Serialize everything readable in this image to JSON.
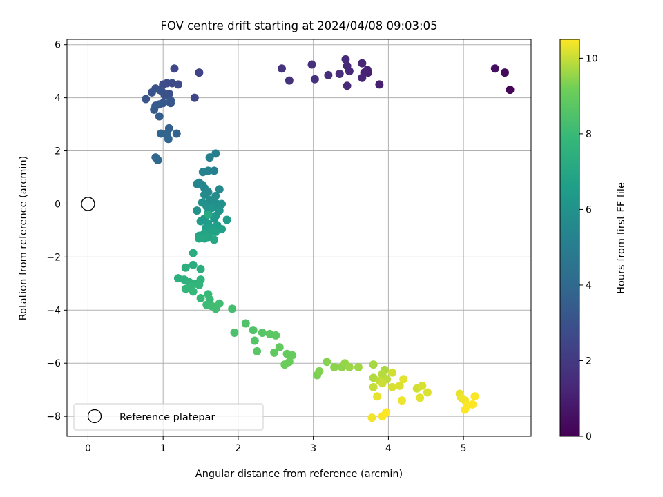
{
  "chart_data": {
    "type": "scatter",
    "title": "FOV centre drift starting at 2024/04/08 09:03:05",
    "xlabel": "Angular distance from reference (arcmin)",
    "ylabel": "Rotation from reference (arcmin)",
    "xlim": [
      -0.28,
      5.9
    ],
    "ylim": [
      -8.75,
      6.2
    ],
    "xticks": [
      0,
      1,
      2,
      3,
      4,
      5
    ],
    "yticks": [
      -8,
      -6,
      -4,
      -2,
      0,
      2,
      4,
      6
    ],
    "grid": true,
    "legend": {
      "placement": "lower-left",
      "label": "Reference platepar"
    },
    "reference_point": {
      "x": 0,
      "y": 0
    },
    "colorbar": {
      "label": "Hours from first FF file",
      "colormap": "viridis",
      "range": [
        0,
        10.5
      ],
      "ticks": [
        0,
        2,
        4,
        6,
        8,
        10
      ]
    },
    "points": [
      {
        "x": 5.62,
        "y": 4.3,
        "t": 0.15
      },
      {
        "x": 5.55,
        "y": 4.95,
        "t": 0.3
      },
      {
        "x": 5.42,
        "y": 5.1,
        "t": 0.45
      },
      {
        "x": 3.88,
        "y": 4.5,
        "t": 1.0
      },
      {
        "x": 3.73,
        "y": 4.95,
        "t": 1.05
      },
      {
        "x": 3.72,
        "y": 5.05,
        "t": 1.1
      },
      {
        "x": 3.68,
        "y": 4.95,
        "t": 1.15
      },
      {
        "x": 3.65,
        "y": 4.75,
        "t": 1.2
      },
      {
        "x": 3.65,
        "y": 5.3,
        "t": 1.25
      },
      {
        "x": 3.48,
        "y": 5.0,
        "t": 1.3
      },
      {
        "x": 3.45,
        "y": 5.2,
        "t": 1.35
      },
      {
        "x": 3.43,
        "y": 5.45,
        "t": 1.4
      },
      {
        "x": 3.45,
        "y": 4.45,
        "t": 1.45
      },
      {
        "x": 3.35,
        "y": 4.9,
        "t": 1.5
      },
      {
        "x": 3.2,
        "y": 4.85,
        "t": 1.55
      },
      {
        "x": 3.02,
        "y": 4.7,
        "t": 1.6
      },
      {
        "x": 2.98,
        "y": 5.25,
        "t": 1.65
      },
      {
        "x": 2.68,
        "y": 4.65,
        "t": 1.7
      },
      {
        "x": 2.58,
        "y": 5.1,
        "t": 1.75
      },
      {
        "x": 1.48,
        "y": 4.95,
        "t": 2.4
      },
      {
        "x": 1.42,
        "y": 4.0,
        "t": 2.5
      },
      {
        "x": 1.15,
        "y": 5.1,
        "t": 2.6
      },
      {
        "x": 1.2,
        "y": 4.5,
        "t": 2.65
      },
      {
        "x": 1.12,
        "y": 4.55,
        "t": 2.7
      },
      {
        "x": 1.05,
        "y": 4.55,
        "t": 2.75
      },
      {
        "x": 1.0,
        "y": 4.5,
        "t": 2.8
      },
      {
        "x": 0.95,
        "y": 4.3,
        "t": 2.85
      },
      {
        "x": 1.08,
        "y": 4.15,
        "t": 2.9
      },
      {
        "x": 1.02,
        "y": 4.1,
        "t": 2.95
      },
      {
        "x": 0.98,
        "y": 4.25,
        "t": 3.0
      },
      {
        "x": 0.9,
        "y": 4.35,
        "t": 3.05
      },
      {
        "x": 0.85,
        "y": 4.2,
        "t": 3.1
      },
      {
        "x": 0.77,
        "y": 3.95,
        "t": 3.15
      },
      {
        "x": 1.1,
        "y": 3.9,
        "t": 3.2
      },
      {
        "x": 1.1,
        "y": 3.8,
        "t": 3.25
      },
      {
        "x": 1.0,
        "y": 3.8,
        "t": 3.3
      },
      {
        "x": 0.95,
        "y": 3.75,
        "t": 3.35
      },
      {
        "x": 0.9,
        "y": 3.7,
        "t": 3.4
      },
      {
        "x": 0.88,
        "y": 3.55,
        "t": 3.45
      },
      {
        "x": 0.95,
        "y": 3.3,
        "t": 3.5
      },
      {
        "x": 1.08,
        "y": 2.85,
        "t": 3.6
      },
      {
        "x": 1.18,
        "y": 2.65,
        "t": 3.7
      },
      {
        "x": 1.05,
        "y": 2.65,
        "t": 3.75
      },
      {
        "x": 0.97,
        "y": 2.65,
        "t": 3.8
      },
      {
        "x": 1.07,
        "y": 2.45,
        "t": 3.85
      },
      {
        "x": 0.9,
        "y": 1.75,
        "t": 3.95
      },
      {
        "x": 0.93,
        "y": 1.65,
        "t": 4.0
      },
      {
        "x": 1.7,
        "y": 1.9,
        "t": 5.1
      },
      {
        "x": 1.62,
        "y": 1.75,
        "t": 5.15
      },
      {
        "x": 1.68,
        "y": 1.25,
        "t": 5.2
      },
      {
        "x": 1.6,
        "y": 1.25,
        "t": 5.25
      },
      {
        "x": 1.53,
        "y": 1.2,
        "t": 5.3
      },
      {
        "x": 1.48,
        "y": 0.8,
        "t": 5.35
      },
      {
        "x": 1.45,
        "y": 0.75,
        "t": 5.4
      },
      {
        "x": 1.55,
        "y": 0.6,
        "t": 5.45
      },
      {
        "x": 1.52,
        "y": 0.72,
        "t": 5.5
      },
      {
        "x": 1.75,
        "y": 0.55,
        "t": 5.55
      },
      {
        "x": 1.6,
        "y": 0.45,
        "t": 5.6
      },
      {
        "x": 1.55,
        "y": 0.35,
        "t": 5.65
      },
      {
        "x": 1.7,
        "y": 0.3,
        "t": 5.7
      },
      {
        "x": 1.62,
        "y": 0.15,
        "t": 5.75
      },
      {
        "x": 1.68,
        "y": 0.1,
        "t": 5.8
      },
      {
        "x": 1.72,
        "y": 0.0,
        "t": 5.85
      },
      {
        "x": 1.78,
        "y": 0.0,
        "t": 5.9
      },
      {
        "x": 1.52,
        "y": 0.05,
        "t": 5.95
      },
      {
        "x": 1.58,
        "y": -0.1,
        "t": 6.0
      },
      {
        "x": 1.45,
        "y": -0.25,
        "t": 6.05
      },
      {
        "x": 1.65,
        "y": -0.15,
        "t": 6.1
      },
      {
        "x": 1.75,
        "y": -0.25,
        "t": 6.15
      },
      {
        "x": 1.6,
        "y": -0.35,
        "t": 6.2
      },
      {
        "x": 1.7,
        "y": -0.45,
        "t": 6.25
      },
      {
        "x": 1.55,
        "y": -0.55,
        "t": 6.3
      },
      {
        "x": 1.68,
        "y": -0.55,
        "t": 6.35
      },
      {
        "x": 1.5,
        "y": -0.65,
        "t": 6.4
      },
      {
        "x": 1.85,
        "y": -0.6,
        "t": 6.45
      },
      {
        "x": 1.6,
        "y": -0.75,
        "t": 6.5
      },
      {
        "x": 1.72,
        "y": -0.8,
        "t": 6.55
      },
      {
        "x": 1.65,
        "y": -0.9,
        "t": 6.6
      },
      {
        "x": 1.57,
        "y": -0.9,
        "t": 6.65
      },
      {
        "x": 1.78,
        "y": -0.95,
        "t": 6.7
      },
      {
        "x": 1.7,
        "y": -1.05,
        "t": 6.75
      },
      {
        "x": 1.62,
        "y": -1.1,
        "t": 6.8
      },
      {
        "x": 1.55,
        "y": -1.1,
        "t": 6.85
      },
      {
        "x": 1.48,
        "y": -1.2,
        "t": 6.9
      },
      {
        "x": 1.6,
        "y": -1.25,
        "t": 6.95
      },
      {
        "x": 1.55,
        "y": -1.3,
        "t": 7.0
      },
      {
        "x": 1.68,
        "y": -1.35,
        "t": 7.05
      },
      {
        "x": 1.48,
        "y": -1.3,
        "t": 7.1
      },
      {
        "x": 1.6,
        "y": -0.4,
        "t": 7.15
      },
      {
        "x": 1.4,
        "y": -1.85,
        "t": 7.25
      },
      {
        "x": 1.4,
        "y": -2.3,
        "t": 7.3
      },
      {
        "x": 1.5,
        "y": -2.45,
        "t": 7.35
      },
      {
        "x": 1.3,
        "y": -2.4,
        "t": 7.4
      },
      {
        "x": 1.2,
        "y": -2.8,
        "t": 7.45
      },
      {
        "x": 1.28,
        "y": -2.85,
        "t": 7.5
      },
      {
        "x": 1.35,
        "y": -2.95,
        "t": 7.55
      },
      {
        "x": 1.42,
        "y": -3.0,
        "t": 7.6
      },
      {
        "x": 1.5,
        "y": -2.85,
        "t": 7.65
      },
      {
        "x": 1.48,
        "y": -3.05,
        "t": 7.7
      },
      {
        "x": 1.38,
        "y": -3.1,
        "t": 7.75
      },
      {
        "x": 1.3,
        "y": -3.2,
        "t": 7.8
      },
      {
        "x": 1.4,
        "y": -3.3,
        "t": 7.85
      },
      {
        "x": 1.5,
        "y": -3.55,
        "t": 7.9
      },
      {
        "x": 1.6,
        "y": -3.4,
        "t": 7.95
      },
      {
        "x": 1.62,
        "y": -3.6,
        "t": 8.0
      },
      {
        "x": 1.58,
        "y": -3.8,
        "t": 8.05
      },
      {
        "x": 1.65,
        "y": -3.85,
        "t": 8.1
      },
      {
        "x": 1.7,
        "y": -3.95,
        "t": 8.15
      },
      {
        "x": 1.75,
        "y": -3.75,
        "t": 8.2
      },
      {
        "x": 1.92,
        "y": -3.95,
        "t": 8.25
      },
      {
        "x": 1.95,
        "y": -4.85,
        "t": 8.4
      },
      {
        "x": 2.1,
        "y": -4.5,
        "t": 8.5
      },
      {
        "x": 2.2,
        "y": -4.75,
        "t": 8.55
      },
      {
        "x": 2.22,
        "y": -5.15,
        "t": 8.6
      },
      {
        "x": 2.32,
        "y": -4.85,
        "t": 8.65
      },
      {
        "x": 2.25,
        "y": -5.55,
        "t": 8.7
      },
      {
        "x": 2.42,
        "y": -4.9,
        "t": 8.75
      },
      {
        "x": 2.5,
        "y": -4.95,
        "t": 8.8
      },
      {
        "x": 2.48,
        "y": -5.6,
        "t": 8.85
      },
      {
        "x": 2.55,
        "y": -5.4,
        "t": 8.9
      },
      {
        "x": 2.65,
        "y": -5.65,
        "t": 8.95
      },
      {
        "x": 2.72,
        "y": -5.7,
        "t": 9.0
      },
      {
        "x": 2.68,
        "y": -5.95,
        "t": 9.05
      },
      {
        "x": 2.62,
        "y": -6.05,
        "t": 9.1
      },
      {
        "x": 3.05,
        "y": -6.45,
        "t": 9.3
      },
      {
        "x": 3.08,
        "y": -6.3,
        "t": 9.35
      },
      {
        "x": 3.18,
        "y": -5.95,
        "t": 9.4
      },
      {
        "x": 3.28,
        "y": -6.15,
        "t": 9.45
      },
      {
        "x": 3.38,
        "y": -6.15,
        "t": 9.5
      },
      {
        "x": 3.42,
        "y": -6.0,
        "t": 9.55
      },
      {
        "x": 3.48,
        "y": -6.15,
        "t": 9.6
      },
      {
        "x": 3.6,
        "y": -6.15,
        "t": 9.65
      },
      {
        "x": 3.8,
        "y": -6.05,
        "t": 9.7
      },
      {
        "x": 3.95,
        "y": -6.25,
        "t": 9.75
      },
      {
        "x": 3.8,
        "y": -6.55,
        "t": 9.8
      },
      {
        "x": 3.92,
        "y": -6.4,
        "t": 9.85
      },
      {
        "x": 3.98,
        "y": -6.6,
        "t": 9.9
      },
      {
        "x": 3.88,
        "y": -6.65,
        "t": 9.95
      },
      {
        "x": 3.8,
        "y": -6.9,
        "t": 10.0
      },
      {
        "x": 3.92,
        "y": -6.75,
        "t": 10.05
      },
      {
        "x": 4.05,
        "y": -6.35,
        "t": 10.1
      },
      {
        "x": 4.05,
        "y": -6.9,
        "t": 10.15
      },
      {
        "x": 4.15,
        "y": -6.85,
        "t": 10.2
      },
      {
        "x": 4.2,
        "y": -6.6,
        "t": 10.25
      },
      {
        "x": 3.85,
        "y": -7.25,
        "t": 10.3
      },
      {
        "x": 4.18,
        "y": -7.4,
        "t": 10.35
      },
      {
        "x": 4.38,
        "y": -6.95,
        "t": 10.1
      },
      {
        "x": 4.45,
        "y": -6.85,
        "t": 10.15
      },
      {
        "x": 4.52,
        "y": -7.1,
        "t": 10.2
      },
      {
        "x": 4.42,
        "y": -7.3,
        "t": 10.25
      },
      {
        "x": 3.78,
        "y": -8.05,
        "t": 10.4
      },
      {
        "x": 3.92,
        "y": -8.0,
        "t": 10.45
      },
      {
        "x": 3.97,
        "y": -7.85,
        "t": 10.5
      },
      {
        "x": 4.95,
        "y": -7.15,
        "t": 10.3
      },
      {
        "x": 4.97,
        "y": -7.3,
        "t": 10.35
      },
      {
        "x": 5.02,
        "y": -7.4,
        "t": 10.4
      },
      {
        "x": 5.15,
        "y": -7.25,
        "t": 10.45
      },
      {
        "x": 5.12,
        "y": -7.55,
        "t": 10.5
      },
      {
        "x": 5.05,
        "y": -7.6,
        "t": 10.5
      },
      {
        "x": 5.02,
        "y": -7.75,
        "t": 10.5
      }
    ]
  }
}
